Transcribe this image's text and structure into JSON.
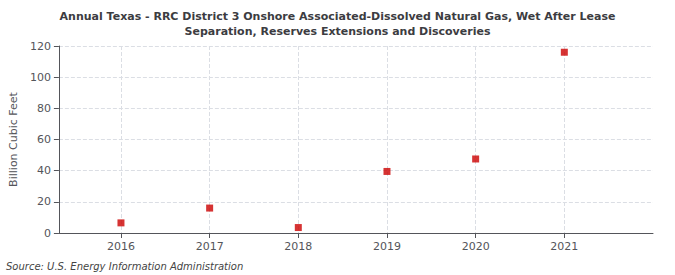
{
  "chart_data": {
    "type": "scatter",
    "title": "Annual Texas - RRC District 3 Onshore Associated-Dissolved Natural Gas, Wet After Lease\nSeparation, Reserves Extensions and Discoveries",
    "ylabel": "Billion Cubic Feet",
    "annotation": "Source: U.S. Energy Information Administration",
    "x": [
      2016,
      2017,
      2018,
      2019,
      2020,
      2021
    ],
    "values": [
      6.5,
      16.0,
      3.5,
      39.5,
      47.5,
      116.0
    ],
    "color": "#cc0000",
    "marker": "square",
    "xlim": [
      2015.3,
      2022.0
    ],
    "xticks": [
      2016,
      2017,
      2018,
      2019,
      2020,
      2021
    ],
    "ylim": [
      0,
      120
    ],
    "yticks": [
      0,
      20,
      40,
      60,
      80,
      100,
      120
    ],
    "grid": true
  }
}
